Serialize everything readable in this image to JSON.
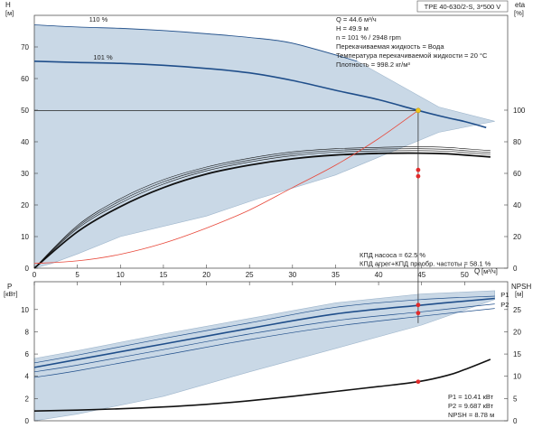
{
  "header": {
    "title_box": "TPE 40-630/2-S, 3*500 V"
  },
  "info_box": [
    "Q = 44.6 м³/ч",
    "H = 49.9 м",
    "n = 101 % / 2948 rpm",
    "Перекачиваемая жидкость = Вода",
    "Температура перекачиваемой жидкости = 20 °C",
    "Плотность = 998.2 кг/м³"
  ],
  "efficiency_box": [
    "КПД насоса = 62.5 %",
    "КПД агрег+КПД преобр. частоты = 58.1 %"
  ],
  "power_box": [
    "P1 = 10.41 кВт",
    "P2 = 9.687 кВт",
    "NPSH = 8.78 м"
  ],
  "colors": {
    "band_fill": "#c9d8e6",
    "band_stroke": "#9fb6cc",
    "curve_blue": "#1f4e8a",
    "curve_black": "#111111",
    "system_curve": "#e8483a",
    "duty_point": "#f0c419",
    "marker_red": "#e22a2a"
  },
  "chart_data": [
    {
      "type": "line",
      "name": "head",
      "xlabel": "Q",
      "xunit": "[м³/ч]",
      "ylabel": "H",
      "yunit": "[м]",
      "y2label": "eta",
      "y2unit": "[%]",
      "xlim": [
        0,
        55
      ],
      "ylim": [
        0,
        80
      ],
      "y2lim": [
        0,
        160
      ],
      "x_ticks": [
        0,
        5,
        10,
        15,
        20,
        25,
        30,
        35,
        40,
        45,
        50
      ],
      "y_ticks": [
        0,
        10,
        20,
        30,
        40,
        50,
        60,
        70
      ],
      "y2_ticks": [
        0,
        20,
        40,
        60,
        80,
        100
      ],
      "operating_band": {
        "upper": [
          [
            0,
            77
          ],
          [
            5,
            76.3
          ],
          [
            15,
            75.2
          ],
          [
            25,
            73
          ],
          [
            30,
            71.2
          ],
          [
            37.5,
            65.5
          ],
          [
            47,
            51
          ],
          [
            53.5,
            46.5
          ]
        ],
        "lower": [
          [
            53.5,
            46.5
          ],
          [
            47,
            43
          ],
          [
            35,
            29.5
          ],
          [
            26,
            22
          ],
          [
            20,
            16.5
          ],
          [
            10,
            10
          ],
          [
            5,
            4.5
          ],
          [
            2,
            1.5
          ],
          [
            0,
            0
          ]
        ]
      },
      "curve_labels": [
        {
          "text": "110 %",
          "x": 5,
          "y": 77.5
        },
        {
          "text": "101 %",
          "x": 5.5,
          "y": 65.5
        }
      ],
      "head_curves": [
        {
          "points": [
            [
              0,
              77
            ],
            [
              5,
              76.3
            ],
            [
              10,
              75.9
            ],
            [
              15,
              75.2
            ],
            [
              20,
              74.2
            ],
            [
              25,
              73
            ],
            [
              30,
              71.2
            ],
            [
              37.5,
              65.5
            ]
          ],
          "role": "limit"
        },
        {
          "points": [
            [
              0,
              65.5
            ],
            [
              5,
              65.1
            ],
            [
              10,
              64.8
            ],
            [
              15,
              64.2
            ],
            [
              20,
              63.2
            ],
            [
              25,
              61.8
            ],
            [
              30,
              59.4
            ],
            [
              35,
              56.3
            ],
            [
              40,
              53.3
            ],
            [
              44.6,
              49.9
            ],
            [
              48,
              47.6
            ],
            [
              50,
              46.4
            ],
            [
              52.5,
              44.5
            ]
          ],
          "role": "main"
        }
      ],
      "efficiency_curves": [
        {
          "points": [
            [
              0,
              0
            ],
            [
              5,
              13.5
            ],
            [
              10,
              22
            ],
            [
              15,
              28
            ],
            [
              20,
              32
            ],
            [
              25,
              34.8
            ],
            [
              30,
              36.8
            ],
            [
              35,
              37.8
            ],
            [
              40,
              38.2
            ],
            [
              44.6,
              38.4
            ],
            [
              48,
              38.2
            ],
            [
              50,
              37.8
            ],
            [
              53,
              37.2
            ]
          ],
          "role": "thin"
        },
        {
          "points": [
            [
              0,
              0
            ],
            [
              5,
              13
            ],
            [
              10,
              21.3
            ],
            [
              15,
              27.3
            ],
            [
              20,
              31.4
            ],
            [
              25,
              34.2
            ],
            [
              30,
              36.2
            ],
            [
              35,
              37.3
            ],
            [
              40,
              37.7
            ],
            [
              44.6,
              37.8
            ],
            [
              48,
              37.6
            ],
            [
              50,
              37.2
            ],
            [
              53,
              36.6
            ]
          ],
          "role": "thin"
        },
        {
          "points": [
            [
              0,
              0
            ],
            [
              5,
              12.5
            ],
            [
              10,
              20.6
            ],
            [
              15,
              26.6
            ],
            [
              20,
              30.8
            ],
            [
              25,
              33.6
            ],
            [
              30,
              35.6
            ],
            [
              35,
              36.7
            ],
            [
              40,
              37.1
            ],
            [
              44.6,
              37.2
            ],
            [
              48,
              37.0
            ],
            [
              50,
              36.6
            ],
            [
              53,
              36.0
            ]
          ],
          "role": "thin"
        },
        {
          "points": [
            [
              0,
              0
            ],
            [
              5,
              11.5
            ],
            [
              10,
              19.5
            ],
            [
              15,
              25.5
            ],
            [
              20,
              29.8
            ],
            [
              25,
              32.6
            ],
            [
              30,
              34.6
            ],
            [
              35,
              35.8
            ],
            [
              40,
              36.3
            ],
            [
              44.6,
              36.4
            ],
            [
              48,
              36.2
            ],
            [
              50,
              35.8
            ],
            [
              53,
              35.2
            ]
          ],
          "role": "thick"
        }
      ],
      "system_curve": [
        [
          0,
          1.5
        ],
        [
          5,
          2.3
        ],
        [
          10,
          4.4
        ],
        [
          15,
          7.9
        ],
        [
          20,
          12.7
        ],
        [
          25,
          18.4
        ],
        [
          30,
          25.5
        ],
        [
          35,
          32.6
        ],
        [
          40,
          41.0
        ],
        [
          44.6,
          49.9
        ]
      ],
      "duty_point": {
        "x": 44.6,
        "y": 49.9
      },
      "eta_markers": [
        {
          "x": 44.6,
          "y": 31.1
        },
        {
          "x": 44.6,
          "y": 29.1
        }
      ],
      "eta_pump_pct": 62.5,
      "eta_total_pct": 58.1
    },
    {
      "type": "line",
      "name": "power",
      "ylabel": "P",
      "yunit": "[кВт]",
      "y2label": "NPSH",
      "y2unit": "[м]",
      "xlim": [
        0,
        55
      ],
      "ylim": [
        0,
        12.5
      ],
      "y2lim": [
        0,
        31.25
      ],
      "y_ticks": [
        0,
        2,
        4,
        6,
        8,
        10
      ],
      "y2_ticks": [
        0,
        5,
        10,
        15,
        20,
        25
      ],
      "operating_band": {
        "upper": [
          [
            0,
            5.6
          ],
          [
            5,
            6.3
          ],
          [
            15,
            7.8
          ],
          [
            25,
            9.2
          ],
          [
            35,
            10.6
          ],
          [
            45,
            11.4
          ],
          [
            53.5,
            11.7
          ]
        ],
        "lower": [
          [
            53.5,
            11.7
          ],
          [
            53.5,
            10.9
          ],
          [
            45,
            8.6
          ],
          [
            35,
            6.5
          ],
          [
            25,
            4.4
          ],
          [
            15,
            2.2
          ],
          [
            5,
            0.6
          ],
          [
            0,
            0
          ]
        ]
      },
      "series": [
        {
          "name": "P1",
          "points": [
            [
              0,
              5.2
            ],
            [
              5,
              5.9
            ],
            [
              15,
              7.4
            ],
            [
              25,
              8.8
            ],
            [
              35,
              10.2
            ],
            [
              45,
              10.9
            ],
            [
              53.5,
              11.2
            ]
          ],
          "role": "thin"
        },
        {
          "name": "P2",
          "points": [
            [
              0,
              4.4
            ],
            [
              5,
              5.0
            ],
            [
              15,
              6.4
            ],
            [
              25,
              7.8
            ],
            [
              35,
              9.0
            ],
            [
              45,
              9.8
            ],
            [
              53.5,
              10.5
            ]
          ],
          "role": "thin"
        },
        {
          "name": "",
          "points": [
            [
              0,
              4.8
            ],
            [
              5,
              5.5
            ],
            [
              15,
              6.9
            ],
            [
              25,
              8.3
            ],
            [
              35,
              9.6
            ],
            [
              45,
              10.4
            ],
            [
              53.5,
              11.0
            ]
          ],
          "role": "main"
        },
        {
          "name": "",
          "points": [
            [
              0,
              3.9
            ],
            [
              5,
              4.5
            ],
            [
              15,
              5.9
            ],
            [
              25,
              7.3
            ],
            [
              35,
              8.5
            ],
            [
              45,
              9.4
            ],
            [
              53.5,
              10.1
            ]
          ],
          "role": "thin"
        }
      ],
      "series_labels": [
        {
          "text": "P1",
          "x": 54.5,
          "y": 11.3
        },
        {
          "text": "P2",
          "x": 54.5,
          "y": 10.4
        }
      ],
      "npsh_curve": [
        [
          0,
          2.2
        ],
        [
          5,
          2.4
        ],
        [
          10,
          2.7
        ],
        [
          15,
          3.1
        ],
        [
          20,
          3.7
        ],
        [
          25,
          4.5
        ],
        [
          30,
          5.5
        ],
        [
          35,
          6.6
        ],
        [
          40,
          7.7
        ],
        [
          44.6,
          8.78
        ],
        [
          48,
          10.2
        ],
        [
          50,
          11.5
        ],
        [
          53,
          13.8
        ]
      ],
      "markers": [
        {
          "x": 44.6,
          "y": 10.41
        },
        {
          "x": 44.6,
          "y": 9.687
        }
      ],
      "npsh_marker": {
        "x": 44.6,
        "y": 8.78
      }
    }
  ]
}
